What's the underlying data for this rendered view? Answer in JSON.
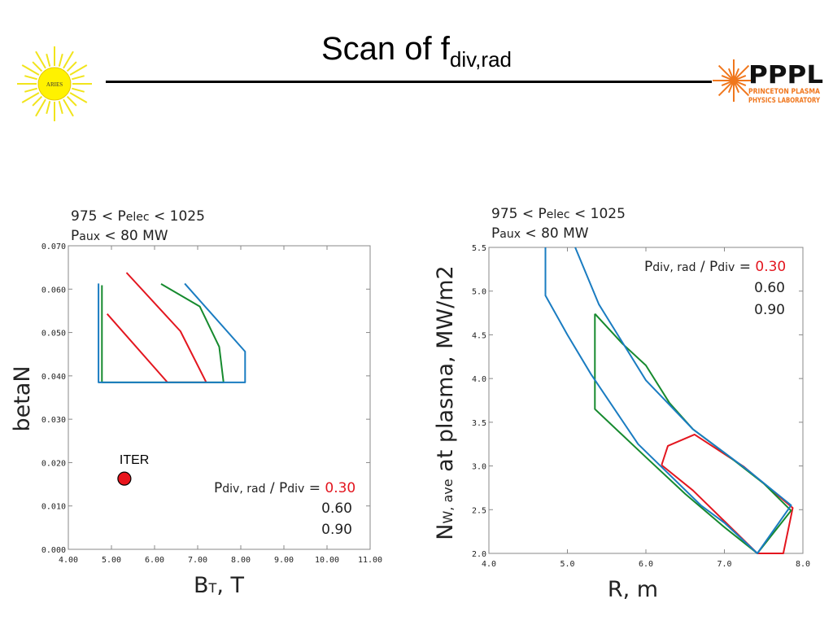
{
  "slide": {
    "title_main": "Scan of f",
    "title_sub": "div,rad",
    "logo_left_text": "ARIES",
    "logo_right_top": "PPPL",
    "logo_right_line1": "PRINCETON PLASMA",
    "logo_right_line2": "PHYSICS LABORATORY"
  },
  "colors": {
    "red": "#e3161f",
    "green": "#168a2e",
    "blue": "#1a7cc1",
    "iter_fill": "#e8141c"
  },
  "chart_data": [
    {
      "type": "line",
      "header": {
        "line1_a": "975 < P",
        "line1_sub": "elec",
        "line1_b": " < 1025",
        "line2_a": "P",
        "line2_sub": "aux",
        "line2_b": " < 80 MW"
      },
      "xlabel": "B",
      "xlabel_sub": "T",
      "xlabel_unit": ", T",
      "ylabel": "betaN",
      "xlim": [
        4.0,
        11.0
      ],
      "ylim": [
        0.0,
        0.07
      ],
      "xticks": [
        "4.00",
        "5.00",
        "6.00",
        "7.00",
        "8.00",
        "9.00",
        "10.00",
        "11.00"
      ],
      "yticks": [
        "0.000",
        "0.010",
        "0.020",
        "0.030",
        "0.040",
        "0.050",
        "0.060",
        "0.070"
      ],
      "legend": {
        "title_a": "P",
        "title_sub1": "div, rad",
        "title_b": " / P",
        "title_sub2": "div",
        "title_c": " = ",
        "values": [
          "0.30",
          "0.60",
          "0.90"
        ],
        "position": "bottom-right"
      },
      "series": [
        {
          "name": "0.30",
          "color": "red",
          "points": [
            [
              5.35,
              0.0638
            ],
            [
              6.6,
              0.0503
            ],
            [
              7.2,
              0.0385
            ],
            [
              6.3,
              0.0385
            ],
            [
              4.9,
              0.0543
            ]
          ]
        },
        {
          "name": "0.60",
          "color": "green",
          "points": [
            [
              4.78,
              0.0609
            ],
            [
              4.78,
              0.0385
            ],
            [
              7.6,
              0.0385
            ],
            [
              7.5,
              0.0467
            ],
            [
              7.05,
              0.056
            ],
            [
              6.15,
              0.0612
            ]
          ]
        },
        {
          "name": "0.90",
          "color": "blue",
          "points": [
            [
              4.7,
              0.0613
            ],
            [
              4.7,
              0.0385
            ],
            [
              8.1,
              0.0385
            ],
            [
              8.1,
              0.0456
            ],
            [
              6.7,
              0.0613
            ]
          ]
        }
      ],
      "annotation": {
        "label": "ITER",
        "x": 5.3,
        "y": 0.0163
      }
    },
    {
      "type": "line",
      "header": {
        "line1_a": "975 < P",
        "line1_sub": "elec",
        "line1_b": " < 1025",
        "line2_a": "P",
        "line2_sub": "aux",
        "line2_b": " < 80 MW"
      },
      "xlabel": "R, m",
      "ylabel_a": "N",
      "ylabel_sub": "W, ave",
      "ylabel_b": " at plasma, MW/m2",
      "xlim": [
        4.0,
        8.0
      ],
      "ylim": [
        2.0,
        5.5
      ],
      "xticks": [
        "4.0",
        "5.0",
        "6.0",
        "7.0",
        "8.0"
      ],
      "yticks": [
        "2.0",
        "2.5",
        "3.0",
        "3.5",
        "4.0",
        "4.5",
        "5.0",
        "5.5"
      ],
      "legend": {
        "title_a": "P",
        "title_sub1": "div, rad",
        "title_b": " / P",
        "title_sub2": "div",
        "title_c": " = ",
        "values": [
          "0.30",
          "0.60",
          "0.90"
        ],
        "position": "top-right"
      },
      "series": [
        {
          "name": "0.30",
          "color": "red",
          "points": [
            [
              6.2,
              3.01
            ],
            [
              6.28,
              3.23
            ],
            [
              6.62,
              3.36
            ],
            [
              7.25,
              2.99
            ],
            [
              7.87,
              2.52
            ],
            [
              7.75,
              2.0
            ],
            [
              7.42,
              2.0
            ],
            [
              6.6,
              2.72
            ],
            [
              6.2,
              3.01
            ]
          ]
        },
        {
          "name": "0.60",
          "color": "green",
          "points": [
            [
              5.35,
              4.74
            ],
            [
              5.7,
              4.4
            ],
            [
              6.0,
              4.15
            ],
            [
              6.3,
              3.72
            ],
            [
              6.6,
              3.42
            ],
            [
              7.0,
              3.15
            ],
            [
              7.5,
              2.8
            ],
            [
              7.85,
              2.49
            ],
            [
              7.42,
              2.0
            ],
            [
              7.0,
              2.3
            ],
            [
              6.5,
              2.68
            ],
            [
              6.0,
              3.1
            ],
            [
              5.35,
              3.65
            ],
            [
              5.35,
              4.12
            ],
            [
              5.35,
              4.74
            ]
          ]
        },
        {
          "name": "0.90",
          "color": "blue",
          "points": [
            [
              4.72,
              5.5
            ],
            [
              4.72,
              4.95
            ],
            [
              5.0,
              4.5
            ],
            [
              5.3,
              4.05
            ],
            [
              5.6,
              3.65
            ],
            [
              5.9,
              3.25
            ],
            [
              6.3,
              2.9
            ],
            [
              6.7,
              2.55
            ],
            [
              7.0,
              2.35
            ],
            [
              7.42,
              2.0
            ],
            [
              7.85,
              2.55
            ],
            [
              7.3,
              2.95
            ],
            [
              6.6,
              3.42
            ],
            [
              6.0,
              3.98
            ],
            [
              5.4,
              4.85
            ],
            [
              5.1,
              5.5
            ]
          ]
        }
      ]
    }
  ]
}
